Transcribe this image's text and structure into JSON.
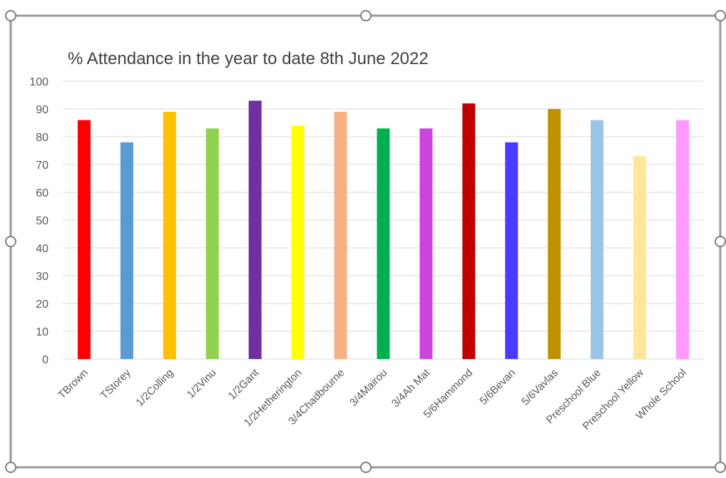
{
  "chart_data": {
    "type": "bar",
    "title": "% Attendance in the year to date 8th June 2022",
    "categories": [
      "TBrown",
      "TStorey",
      "1/2Colling",
      "1/2Vinu",
      "1/2Gant",
      "1/2Hetherington",
      "3/4Chadbourne",
      "3/4Mairou",
      "3/4Ah Mat",
      "5/6Hammond",
      "5/6Bevan",
      "5/6Vavlas",
      "Preschool Blue",
      "Preschool Yellow",
      "Whole School"
    ],
    "values": [
      86,
      78,
      89,
      83,
      93,
      84,
      89,
      83,
      83,
      92,
      78,
      90,
      86,
      73,
      86
    ],
    "colors": [
      "#ff0000",
      "#5b9bd5",
      "#ffc000",
      "#92d050",
      "#7030a0",
      "#ffff00",
      "#f4b183",
      "#00b050",
      "#cc44dd",
      "#c00000",
      "#4a3aff",
      "#bf9000",
      "#9dc3e6",
      "#ffe699",
      "#ff99ff"
    ],
    "ylim": [
      0,
      100
    ],
    "yticks": [
      0,
      10,
      20,
      30,
      40,
      50,
      60,
      70,
      80,
      90,
      100
    ],
    "grid": true,
    "legend": "none"
  },
  "style": {
    "gridColor": "#d9d9d9",
    "textColor": "#595959",
    "titleColor": "#404040",
    "frameColor": "#999999"
  }
}
